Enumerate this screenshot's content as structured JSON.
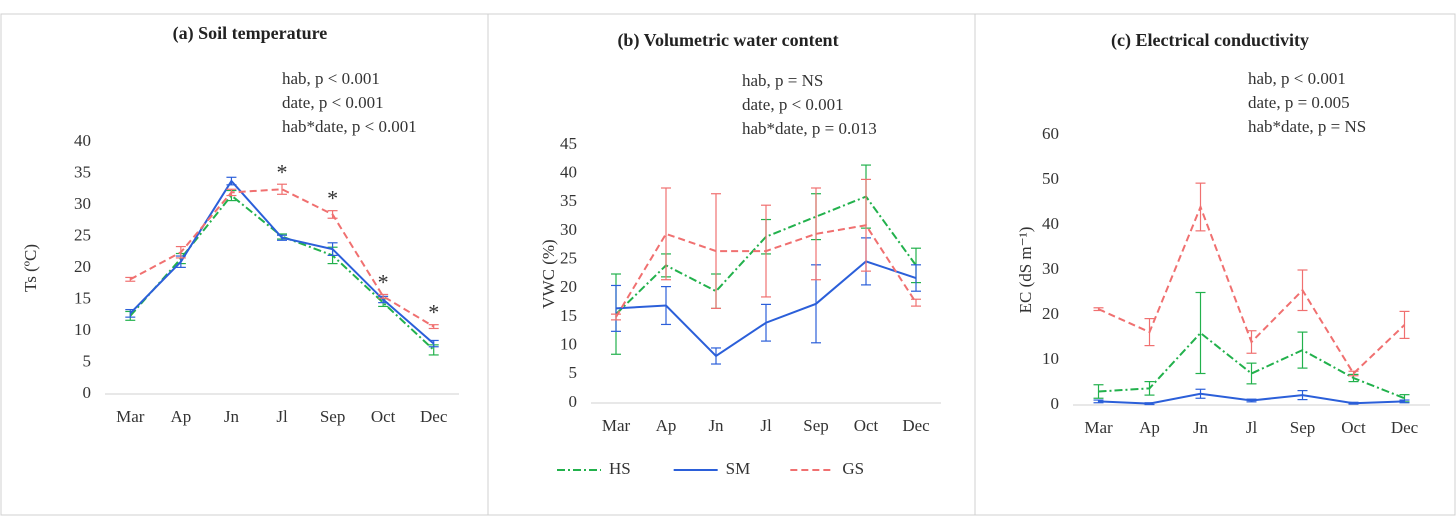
{
  "chart_data": [
    {
      "type": "line",
      "title": "(a) Soil temperature",
      "y_label": "Ts (ºC)",
      "annotations": [
        "hab, p < 0.001",
        "date, p < 0.001",
        "hab*date, p < 0.001"
      ],
      "markers": [
        {
          "text": "*",
          "category": 3
        },
        {
          "text": "*",
          "category": 4
        },
        {
          "text": "*",
          "category": 5
        },
        {
          "text": "*",
          "category": 6
        }
      ],
      "categories": [
        "Mar",
        "Ap",
        "Jn",
        "Jl",
        "Sep",
        "Oct",
        "Dec"
      ],
      "ylim": [
        0,
        40
      ],
      "yticks": [
        0,
        5,
        10,
        15,
        20,
        25,
        30,
        35,
        40
      ],
      "series": [
        {
          "color": "#22b14c",
          "dash": "dashdot",
          "values": [
            12.4,
            21.5,
            31.5,
            25,
            22,
            14.5,
            7
          ],
          "errors": [
            0.7,
            0.8,
            0.8,
            0.4,
            1.3,
            0.6,
            0.8
          ]
        },
        {
          "color": "#2b5fd9",
          "dash": "solid",
          "values": [
            12.8,
            21,
            33.8,
            24.8,
            23,
            15,
            8
          ],
          "errors": [
            0.6,
            0.9,
            0.6,
            0.4,
            1,
            0.5,
            0.5
          ]
        },
        {
          "color": "#f07070",
          "dash": "dashed",
          "values": [
            18.2,
            22.5,
            32,
            32.5,
            28.5,
            15.5,
            10.7
          ],
          "errors": [
            0.3,
            0.9,
            0.5,
            0.8,
            0.6,
            0.3,
            0.3
          ]
        }
      ]
    },
    {
      "type": "line",
      "title": "(b) Volumetric water content",
      "y_label": "VWC (%)",
      "annotations": [
        "hab, p = NS",
        "date, p < 0.001",
        "hab*date, p = 0.013"
      ],
      "legend": "bottom",
      "categories": [
        "Mar",
        "Ap",
        "Jn",
        "Jl",
        "Sep",
        "Oct",
        "Dec"
      ],
      "ylim": [
        0,
        45
      ],
      "yticks": [
        0,
        5,
        10,
        15,
        20,
        25,
        30,
        35,
        40,
        45
      ],
      "series": [
        {
          "name": "HS",
          "color": "#22b14c",
          "dash": "dashdot",
          "values": [
            15.5,
            24,
            19.5,
            29,
            32.5,
            36,
            24
          ],
          "errors": [
            7,
            2,
            3,
            3,
            4,
            5.5,
            3
          ]
        },
        {
          "name": "SM",
          "color": "#2b5fd9",
          "dash": "solid",
          "values": [
            16.5,
            17,
            8.2,
            14,
            17.3,
            24.7,
            21.8
          ],
          "errors": [
            4,
            3.3,
            1.4,
            3.2,
            6.8,
            4.1,
            2.3
          ]
        },
        {
          "name": "GS",
          "color": "#f07070",
          "dash": "dashed",
          "values": [
            15,
            29.5,
            26.5,
            26.5,
            29.5,
            31,
            17.5
          ],
          "errors": [
            0.5,
            8,
            10,
            8,
            8,
            8,
            0.6
          ]
        }
      ]
    },
    {
      "type": "line",
      "title": "(c) Electrical conductivity",
      "y_label": "EC (dS m⁻¹)",
      "annotations": [
        "hab, p < 0.001",
        "date, p = 0.005",
        "hab*date, p = NS"
      ],
      "categories": [
        "Mar",
        "Ap",
        "Jn",
        "Jl",
        "Sep",
        "Oct",
        "Dec"
      ],
      "ylim": [
        0,
        60
      ],
      "yticks": [
        0,
        10,
        20,
        30,
        40,
        50,
        60
      ],
      "series": [
        {
          "color": "#22b14c",
          "dash": "dashdot",
          "values": [
            3,
            3.7,
            16,
            7,
            12.2,
            6,
            1.5
          ],
          "errors": [
            1.5,
            1.5,
            9,
            2.3,
            4,
            0.8,
            0.8
          ]
        },
        {
          "color": "#2b5fd9",
          "dash": "solid",
          "values": [
            0.8,
            0.3,
            2.5,
            1,
            2.2,
            0.4,
            0.8
          ],
          "errors": [
            0.3,
            0.2,
            1,
            0.3,
            1,
            0.2,
            0.3
          ]
        },
        {
          "color": "#f07070",
          "dash": "dashed",
          "values": [
            21.3,
            16.2,
            44,
            14,
            25.5,
            7,
            17.8
          ],
          "errors": [
            0.3,
            3,
            5.3,
            2.5,
            4.5,
            0.5,
            3
          ]
        }
      ]
    }
  ]
}
